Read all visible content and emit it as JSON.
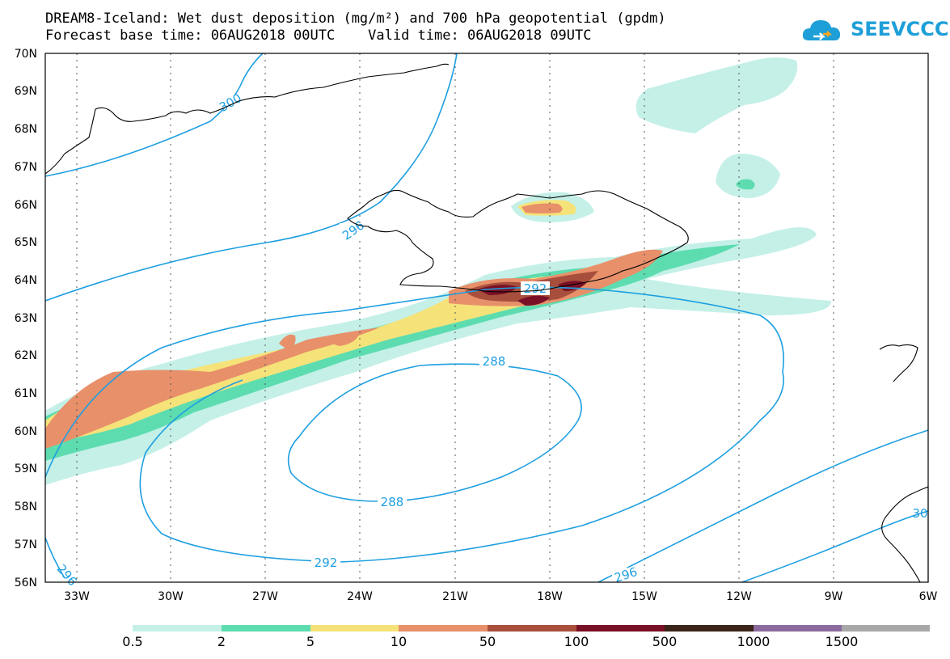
{
  "header": {
    "title_line1": "DREAM8-Iceland: Wet dust deposition (mg/m²) and 700 hPa geopotential (gpdm)",
    "title_line2": "Forecast base time: 06AUG2018 00UTC    Valid time: 06AUG2018 09UTC"
  },
  "logo": {
    "text": "SEEVCCC",
    "icon": "cloud-icon",
    "color": "#1e9fd8"
  },
  "map": {
    "lat_labels": [
      "70N",
      "69N",
      "68N",
      "67N",
      "66N",
      "65N",
      "64N",
      "63N",
      "62N",
      "61N",
      "60N",
      "59N",
      "58N",
      "57N",
      "56N"
    ],
    "lon_labels": [
      "33W",
      "30W",
      "27W",
      "24W",
      "21W",
      "18W",
      "15W",
      "12W",
      "9W",
      "6W"
    ],
    "contour_labels": [
      "300",
      "296",
      "292",
      "288",
      "288",
      "292",
      "296",
      "296",
      "30"
    ],
    "contour_color": "#1e9fe0",
    "coast_color": "#000000"
  },
  "colorbar": {
    "labels": [
      "0.5",
      "2",
      "5",
      "10",
      "50",
      "100",
      "500",
      "1000",
      "1500"
    ],
    "colors": [
      "#c4f0e8",
      "#5ddcb0",
      "#f5e37a",
      "#e8906a",
      "#a84e3c",
      "#7a1026",
      "#3a2318",
      "#8c6a9e",
      "#a8a8a8"
    ]
  }
}
